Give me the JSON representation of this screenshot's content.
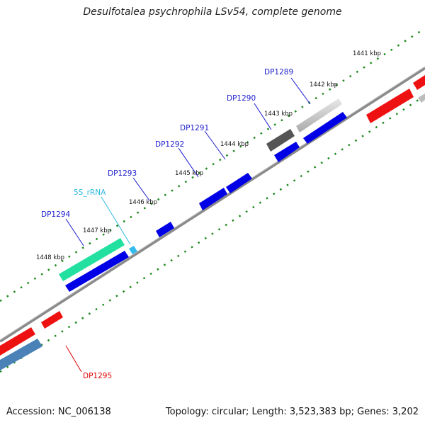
{
  "title": "Desulfotalea psychrophila LSv54, complete genome",
  "footer": {
    "accession": "Accession: NC_006138",
    "summary": "Topology: circular; Length: 3,523,383 bp; Genes: 3,202"
  },
  "ticks": [
    "1441 kbp",
    "1442 kbp",
    "1443 kbp",
    "1444 kbp",
    "1445 kbp",
    "1446 kbp",
    "1447 kbp",
    "1448 kbp"
  ],
  "gene_labels": [
    {
      "text": "DP1289",
      "color": "#1a1acc"
    },
    {
      "text": "DP1290",
      "color": "#1a1acc"
    },
    {
      "text": "DP1291",
      "color": "#1a1acc"
    },
    {
      "text": "DP1292",
      "color": "#1a1acc"
    },
    {
      "text": "DP1293",
      "color": "#1a1acc"
    },
    {
      "text": "5S_rRNA",
      "color": "#2bb8e0"
    },
    {
      "text": "DP1294",
      "color": "#1a1acc"
    },
    {
      "text": "DP1295",
      "color": "#dd0000"
    }
  ],
  "colors": {
    "backbone": "#8a8a8a",
    "tick": "#1e8a1e",
    "forward_cds": "#0000e6",
    "reverse_cds": "#ee1111",
    "rrna": "#22e0a0",
    "trna": "#33bbee",
    "other": "#bdbdbd"
  }
}
